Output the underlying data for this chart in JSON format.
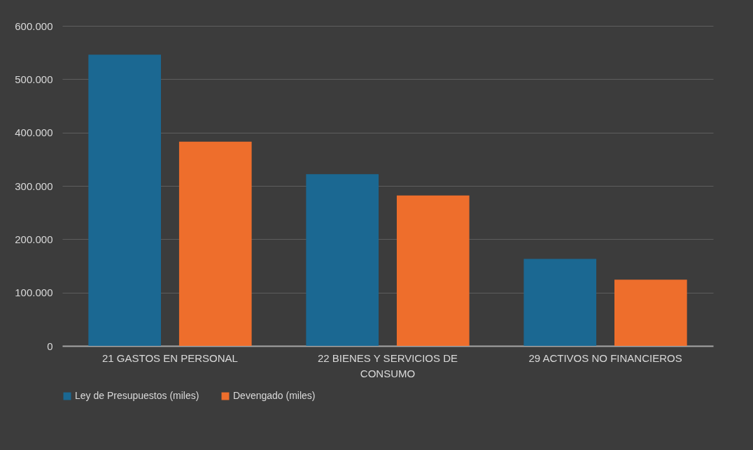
{
  "chart_data": {
    "type": "bar",
    "categories": [
      "21 GASTOS EN PERSONAL",
      "22 BIENES Y SERVICIOS DE CONSUMO",
      "29 ACTIVOS NO FINANCIEROS"
    ],
    "series": [
      {
        "name": "Ley de Presupuestos (miles)",
        "color": "#1b6892",
        "values": [
          546000,
          322000,
          163000
        ]
      },
      {
        "name": "Devengado (miles)",
        "color": "#ee6e2c",
        "values": [
          383000,
          282000,
          124000
        ]
      }
    ],
    "ylim": [
      0,
      600000
    ],
    "yticks": [
      {
        "value": 0,
        "label": "0"
      },
      {
        "value": 100000,
        "label": "100.000"
      },
      {
        "value": 200000,
        "label": "200.000"
      },
      {
        "value": 300000,
        "label": "300.000"
      },
      {
        "value": 400000,
        "label": "400.000"
      },
      {
        "value": 500000,
        "label": "500.000"
      },
      {
        "value": 600000,
        "label": "600.000"
      }
    ],
    "grid": "y",
    "legend": "bottom"
  }
}
